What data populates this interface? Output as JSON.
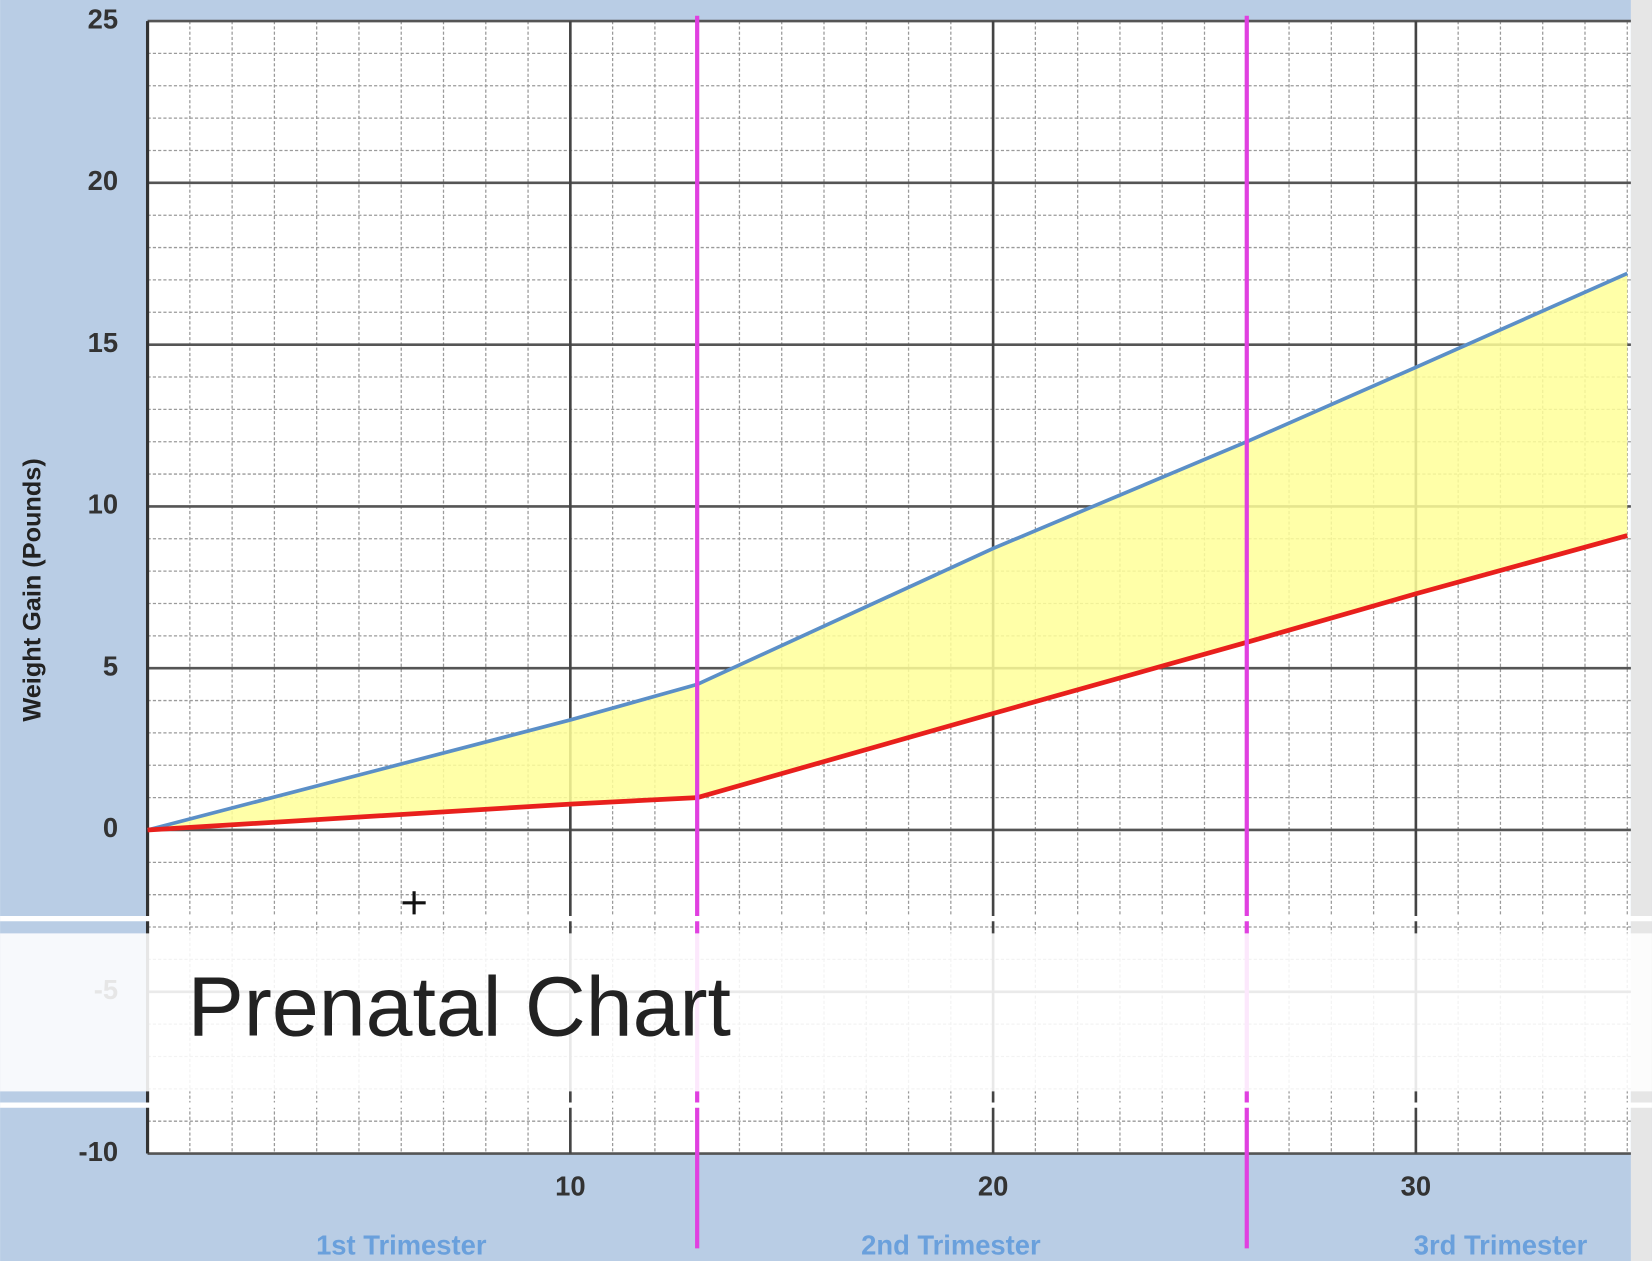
{
  "chart_data": {
    "type": "band",
    "title": "Prenatal Chart",
    "ylabel": "Weight Gain (Pounds)",
    "x": [
      0,
      10,
      13,
      20,
      26,
      30,
      35
    ],
    "series": [
      {
        "color": "#5b8fc7",
        "values": [
          0,
          3.4,
          4.5,
          8.7,
          12,
          14.3,
          17.2
        ]
      },
      {
        "color": "#e8201c",
        "values": [
          0,
          0.8,
          1,
          3.6,
          5.8,
          7.3,
          9.1
        ]
      }
    ],
    "band_color": "#ffff99",
    "xlim": [
      0,
      35
    ],
    "ylim": [
      -10,
      25
    ],
    "xticks": [
      10,
      20,
      30
    ],
    "yticks": [
      -10,
      -5,
      0,
      5,
      10,
      15,
      20,
      25
    ],
    "grid": true,
    "markers": [
      {
        "value": 13,
        "color": "#e040e0"
      },
      {
        "value": 26,
        "color": "#e040e0"
      }
    ],
    "trimesters": [
      "1st Trimester",
      "2nd Trimester",
      "3rd Trimester"
    ]
  }
}
